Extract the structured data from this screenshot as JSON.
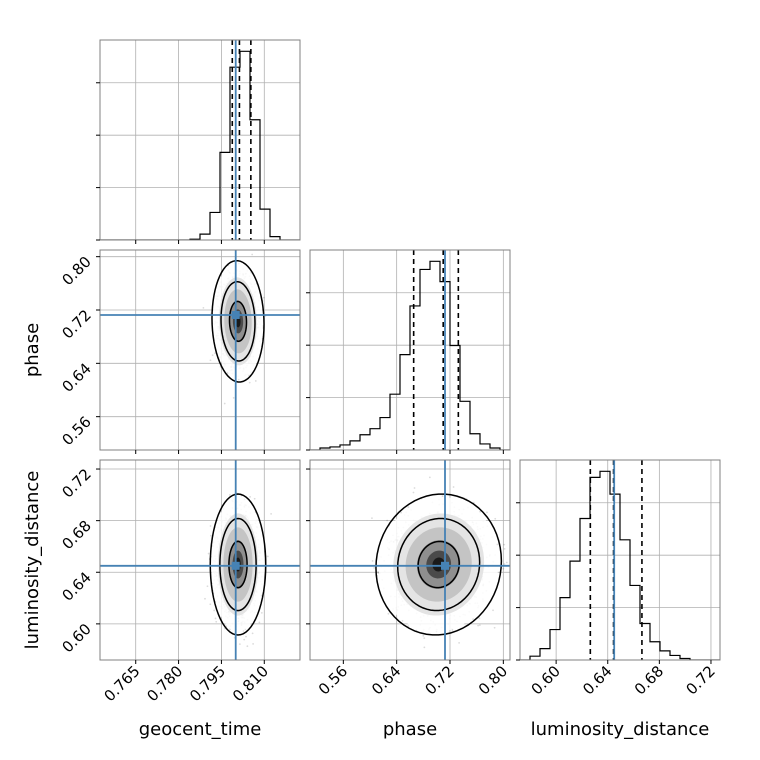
{
  "colors": {
    "truth": "#4682b4",
    "grid": "#b0b0b0",
    "frame": "#808080",
    "hist": "#000000",
    "scatter": "#000000"
  },
  "chart_data": {
    "type": "corner",
    "title": "",
    "parameters": [
      "geocent_time",
      "phase",
      "luminosity_distance"
    ],
    "ranges": {
      "geocent_time": [
        0.7525,
        0.8225
      ],
      "phase": [
        0.51,
        0.81
      ],
      "luminosity_distance": [
        0.572,
        0.727
      ]
    },
    "ticks": {
      "geocent_time": [
        "0.765",
        "0.780",
        "0.795",
        "0.810"
      ],
      "phase": [
        "0.56",
        "0.64",
        "0.72",
        "0.80"
      ],
      "luminosity_distance": [
        "0.60",
        "0.64",
        "0.68",
        "0.72"
      ]
    },
    "truths": {
      "geocent_time": 0.8,
      "phase": 0.7125,
      "luminosity_distance": 0.645
    },
    "quantiles": {
      "geocent_time": [
        0.7988,
        0.8013,
        0.8053
      ],
      "phase": [
        0.6655,
        0.7098,
        0.7325
      ],
      "luminosity_distance": [
        0.6265,
        0.6445,
        0.6665
      ]
    },
    "grid": true,
    "histograms": [
      {
        "parameter": "geocent_time",
        "bin_edges": [
          0.7525,
          0.756,
          0.7595,
          0.763,
          0.7665,
          0.77,
          0.7735,
          0.777,
          0.7805,
          0.784,
          0.7875,
          0.791,
          0.7945,
          0.798,
          0.8015,
          0.805,
          0.8085,
          0.812,
          0.8155,
          0.819,
          0.8225
        ],
        "counts": [
          0,
          0,
          0,
          0,
          0,
          0,
          0,
          0,
          0,
          1,
          7,
          33,
          105,
          207,
          226,
          144,
          37,
          4,
          0,
          0
        ]
      },
      {
        "parameter": "phase",
        "bin_edges": [
          0.51,
          0.525,
          0.54,
          0.555,
          0.57,
          0.585,
          0.6,
          0.615,
          0.63,
          0.645,
          0.66,
          0.675,
          0.69,
          0.705,
          0.72,
          0.735,
          0.75,
          0.765,
          0.78,
          0.795,
          0.81
        ],
        "counts": [
          0,
          2,
          3,
          5,
          9,
          15,
          21,
          32,
          55,
          94,
          142,
          178,
          186,
          166,
          103,
          48,
          16,
          6,
          2,
          0
        ]
      },
      {
        "parameter": "luminosity_distance",
        "bin_edges": [
          0.572,
          0.57975,
          0.5875,
          0.59525,
          0.603,
          0.61075,
          0.6185,
          0.62625,
          0.634,
          0.64175,
          0.6495,
          0.65725,
          0.665,
          0.67275,
          0.6805,
          0.68825,
          0.696,
          0.70375,
          0.7115,
          0.71925,
          0.727
        ],
        "counts": [
          0,
          5,
          15,
          40,
          82,
          130,
          186,
          240,
          248,
          218,
          158,
          98,
          48,
          24,
          12,
          6,
          2,
          0,
          0,
          0
        ]
      }
    ],
    "joint": [
      {
        "x": "geocent_time",
        "y": "phase",
        "mean": [
          0.8008,
          0.703
        ],
        "sd": [
          0.003,
          0.03
        ],
        "corr": -0.05,
        "contour_levels": [
          0.39,
          0.86,
          0.99
        ]
      },
      {
        "x": "geocent_time",
        "y": "luminosity_distance",
        "mean": [
          0.8008,
          0.646
        ],
        "sd": [
          0.0032,
          0.018
        ],
        "corr": 0.0,
        "contour_levels": [
          0.39,
          0.86,
          0.99
        ]
      },
      {
        "x": "phase",
        "y": "luminosity_distance",
        "mean": [
          0.703,
          0.646
        ],
        "sd": [
          0.031,
          0.018
        ],
        "corr": 0.05,
        "contour_levels": [
          0.39,
          0.86,
          0.99
        ]
      }
    ]
  }
}
